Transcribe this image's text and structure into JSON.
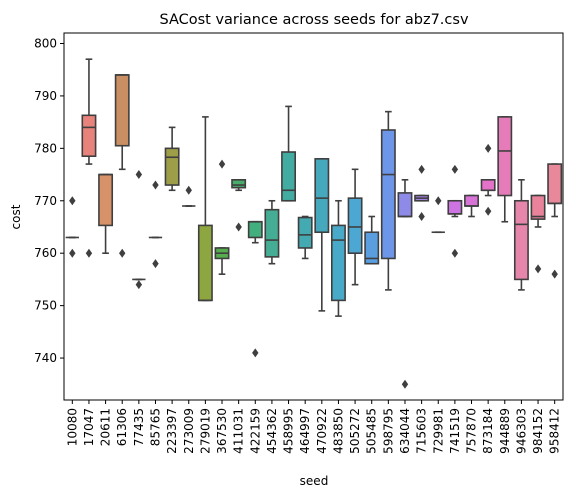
{
  "chart_data": {
    "type": "box",
    "title": "SACost variance across seeds for abz7.csv",
    "xlabel": "seed",
    "ylabel": "cost",
    "ylim": [
      732,
      802
    ],
    "yticks": [
      740,
      750,
      760,
      770,
      780,
      790,
      800
    ],
    "grid": false,
    "categories": [
      "10080",
      "17047",
      "20611",
      "61306",
      "77435",
      "85765",
      "223397",
      "273009",
      "279019",
      "367530",
      "411031",
      "422159",
      "454362",
      "458995",
      "464997",
      "470922",
      "483850",
      "505272",
      "505485",
      "598795",
      "634044",
      "715603",
      "729981",
      "741519",
      "757870",
      "873184",
      "944889",
      "946303",
      "984152",
      "958412"
    ],
    "colors": [
      "#e8837b",
      "#e8837b",
      "#d8926a",
      "#c98f62",
      "#b8965a",
      "#a99f4e",
      "#9e9e48",
      "#9aa23f",
      "#8da63f",
      "#56ad4e",
      "#4aac6c",
      "#43ae7e",
      "#45ad93",
      "#43aca2",
      "#44aab1",
      "#46a8bd",
      "#48a9c8",
      "#4ca8d2",
      "#5a9ee0",
      "#6d96e8",
      "#8d8ae8",
      "#a684e8",
      "#bd7ee6",
      "#cd74e2",
      "#d873d8",
      "#e472c8",
      "#e57cb9",
      "#e686ab",
      "#e8839b",
      "#e8889a"
    ],
    "boxes": [
      {
        "whislo": 763,
        "q1": 763,
        "med": 763,
        "q3": 763,
        "whishi": 763,
        "fliers": [
          770,
          760
        ]
      },
      {
        "whislo": 777,
        "q1": 778.5,
        "med": 784,
        "q3": 786.3,
        "whishi": 797,
        "fliers": [
          760
        ]
      },
      {
        "whislo": 760,
        "q1": 765.3,
        "med": 775,
        "q3": 775,
        "whishi": 775,
        "fliers": []
      },
      {
        "whislo": 776,
        "q1": 780.5,
        "med": 794,
        "q3": 794,
        "whishi": 794,
        "fliers": [
          760
        ]
      },
      {
        "whislo": 755,
        "q1": 755,
        "med": 755,
        "q3": 755,
        "whishi": 755,
        "fliers": [
          775,
          754
        ]
      },
      {
        "whislo": 763,
        "q1": 763,
        "med": 763,
        "q3": 763,
        "whishi": 763,
        "fliers": [
          773,
          758
        ]
      },
      {
        "whislo": 772,
        "q1": 773,
        "med": 778.3,
        "q3": 780,
        "whishi": 784,
        "fliers": []
      },
      {
        "whislo": 769,
        "q1": 769,
        "med": 769,
        "q3": 769,
        "whishi": 769,
        "fliers": [
          772
        ]
      },
      {
        "whislo": 751,
        "q1": 751,
        "med": 751,
        "q3": 765.3,
        "whishi": 786,
        "fliers": []
      },
      {
        "whislo": 756,
        "q1": 759,
        "med": 760,
        "q3": 761,
        "whishi": 761,
        "fliers": [
          777
        ]
      },
      {
        "whislo": 772,
        "q1": 772.5,
        "med": 773,
        "q3": 774,
        "whishi": 774,
        "fliers": [
          765
        ]
      },
      {
        "whislo": 762,
        "q1": 763,
        "med": 766,
        "q3": 766,
        "whishi": 766,
        "fliers": [
          741
        ]
      },
      {
        "whislo": 758,
        "q1": 759.3,
        "med": 762.5,
        "q3": 768.3,
        "whishi": 770,
        "fliers": []
      },
      {
        "whislo": 770,
        "q1": 770,
        "med": 772,
        "q3": 779.3,
        "whishi": 788,
        "fliers": []
      },
      {
        "whislo": 759,
        "q1": 761,
        "med": 763.5,
        "q3": 766.8,
        "whishi": 767,
        "fliers": []
      },
      {
        "whislo": 749,
        "q1": 764,
        "med": 770.5,
        "q3": 778,
        "whishi": 778,
        "fliers": []
      },
      {
        "whislo": 748,
        "q1": 751,
        "med": 762.5,
        "q3": 765.3,
        "whishi": 770,
        "fliers": []
      },
      {
        "whislo": 754,
        "q1": 760,
        "med": 765,
        "q3": 770.5,
        "whishi": 776,
        "fliers": []
      },
      {
        "whislo": 758,
        "q1": 758,
        "med": 759,
        "q3": 764,
        "whishi": 767,
        "fliers": []
      },
      {
        "whislo": 753,
        "q1": 759,
        "med": 775,
        "q3": 783.5,
        "whishi": 787,
        "fliers": []
      },
      {
        "whislo": 767,
        "q1": 767,
        "med": 767,
        "q3": 771.5,
        "whishi": 774,
        "fliers": [
          735
        ]
      },
      {
        "whislo": 770,
        "q1": 770,
        "med": 770.5,
        "q3": 771,
        "whishi": 771,
        "fliers": [
          776,
          767
        ]
      },
      {
        "whislo": 764,
        "q1": 764,
        "med": 764,
        "q3": 764,
        "whishi": 764,
        "fliers": [
          770
        ]
      },
      {
        "whislo": 767,
        "q1": 767.5,
        "med": 767.5,
        "q3": 770,
        "whishi": 770,
        "fliers": [
          776,
          760
        ]
      },
      {
        "whislo": 767,
        "q1": 769,
        "med": 769,
        "q3": 771,
        "whishi": 771,
        "fliers": []
      },
      {
        "whislo": 771,
        "q1": 772,
        "med": 772,
        "q3": 774,
        "whishi": 774,
        "fliers": [
          780,
          768
        ]
      },
      {
        "whislo": 766,
        "q1": 771,
        "med": 779.5,
        "q3": 786,
        "whishi": 786,
        "fliers": []
      },
      {
        "whislo": 753,
        "q1": 755,
        "med": 765.5,
        "q3": 770,
        "whishi": 774,
        "fliers": []
      },
      {
        "whislo": 765,
        "q1": 766.5,
        "med": 767,
        "q3": 771,
        "whishi": 771,
        "fliers": [
          757
        ]
      },
      {
        "whislo": 767,
        "q1": 769.5,
        "med": 769.5,
        "q3": 777,
        "whishi": 777,
        "fliers": [
          756
        ]
      }
    ]
  }
}
